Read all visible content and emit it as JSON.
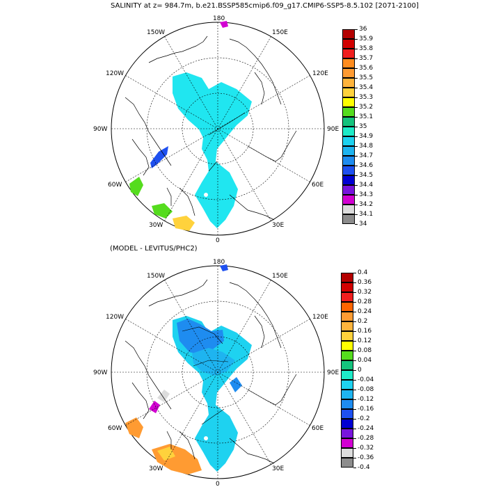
{
  "titles": {
    "top": "SALINITY at z= 984.7m, b.e21.BSSP585cmip6.f09_g17.CMIP6-SSP5-8.5.102 [2071-2100]",
    "bottom": "(MODEL - LEVITUS/PHC2)"
  },
  "longitude_labels": {
    "top": "180",
    "bottom": "0",
    "left": "90W",
    "right": "90E",
    "upper_left": "150W",
    "upper_right": "150E",
    "upper_left_2": "120W",
    "upper_right_2": "120E",
    "lower_left": "30W",
    "lower_right": "30E",
    "lower_left_2": "60W",
    "lower_right_2": "60E"
  },
  "colorbar_top": {
    "labels": [
      "36",
      "35.9",
      "35.8",
      "35.7",
      "35.6",
      "35.5",
      "35.4",
      "35.3",
      "35.2",
      "35.1",
      "35",
      "34.9",
      "34.8",
      "34.7",
      "34.6",
      "34.5",
      "34.4",
      "34.3",
      "34.2",
      "34.1",
      "34"
    ],
    "colors": [
      "#b40000",
      "#d20000",
      "#f01e1e",
      "#ff8c1e",
      "#ff9b32",
      "#ffb43c",
      "#ffd23c",
      "#ffff00",
      "#55dc1e",
      "#14c37d",
      "#1eebc8",
      "#1ed2f0",
      "#1eb4f0",
      "#1e8cf0",
      "#1e50f0",
      "#0000d2",
      "#7814dc",
      "#d200d2",
      "#dcdcdc",
      "#8c8c8c"
    ]
  },
  "colorbar_bottom": {
    "labels": [
      "0.4",
      "0.36",
      "0.32",
      "0.28",
      "0.24",
      "0.2",
      "0.16",
      "0.12",
      "0.08",
      "0.04",
      "0",
      "-0.04",
      "-0.08",
      "-0.12",
      "-0.16",
      "-0.2",
      "-0.24",
      "-0.28",
      "-0.32",
      "-0.36",
      "-0.4"
    ],
    "colors": [
      "#b40000",
      "#d20000",
      "#f01e1e",
      "#ff6400",
      "#ff9b32",
      "#ffb43c",
      "#ffd23c",
      "#ffff00",
      "#55dc1e",
      "#14c37d",
      "#1eebc8",
      "#1ed2f0",
      "#1eb4f0",
      "#1e8cf0",
      "#1e50f0",
      "#0000d2",
      "#7814dc",
      "#d200d2",
      "#dcdcdc",
      "#8c8c8c"
    ]
  },
  "colors": {
    "salinity_field": "#20e6f0",
    "anomaly_field_main": "#1ed2f0",
    "anomaly_field_dark": "#1ea0f0",
    "coast": "#000000"
  }
}
